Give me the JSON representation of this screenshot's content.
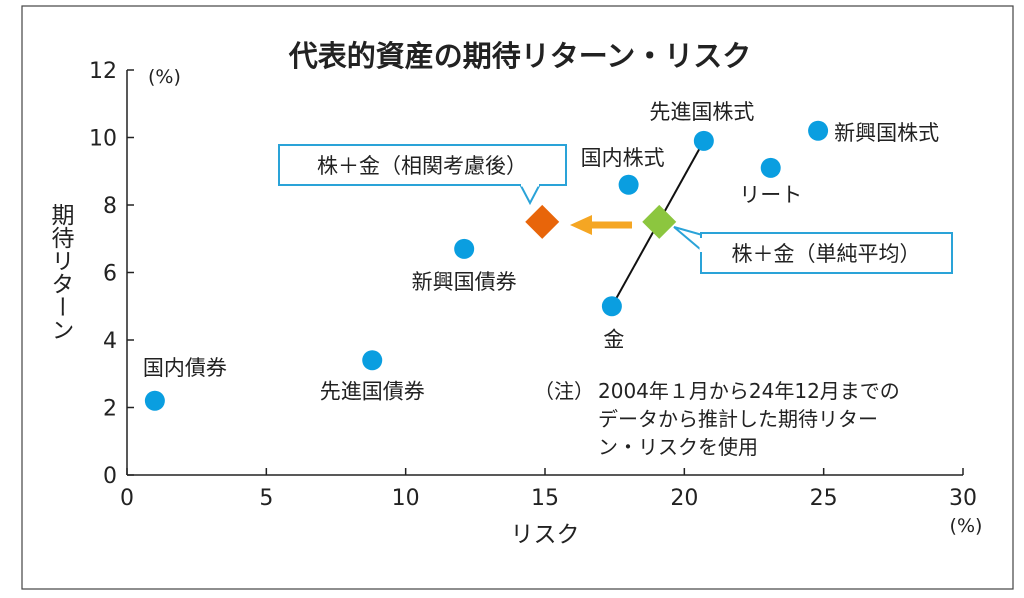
{
  "chart_data": {
    "type": "scatter",
    "title": "代表的資産の期待リターン・リスク",
    "xlabel": "リスク",
    "ylabel": "期待リターン",
    "x_unit": "(%)",
    "y_unit": "(%)",
    "xlim": [
      0,
      30
    ],
    "ylim": [
      0,
      12
    ],
    "x_ticks": [
      "0",
      "5",
      "10",
      "15",
      "20",
      "25",
      "30"
    ],
    "y_ticks": [
      "0",
      "2",
      "4",
      "6",
      "8",
      "10",
      "12"
    ],
    "grid": false,
    "points": [
      {
        "label": "国内債券",
        "x": 1.0,
        "y": 2.2
      },
      {
        "label": "先進国債券",
        "x": 8.8,
        "y": 3.4
      },
      {
        "label": "新興国債券",
        "x": 12.1,
        "y": 6.7
      },
      {
        "label": "国内株式",
        "x": 18.0,
        "y": 8.6
      },
      {
        "label": "先進国株式",
        "x": 20.7,
        "y": 9.9
      },
      {
        "label": "新興国株式",
        "x": 24.8,
        "y": 10.2
      },
      {
        "label": "リート",
        "x": 23.1,
        "y": 9.1
      },
      {
        "label": "金",
        "x": 17.4,
        "y": 5.0
      }
    ],
    "combined": [
      {
        "label": "株＋金（相関考慮後）",
        "x": 14.9,
        "y": 7.5,
        "color": "#e8650a"
      },
      {
        "label": "株＋金（単純平均）",
        "x": 19.1,
        "y": 7.5,
        "color": "#8cc63f"
      }
    ],
    "note": {
      "prefix": "（注）",
      "lines": [
        "2004年１月から24年12月までの",
        "データから推計した期待リター",
        "ン・リスクを使用"
      ]
    },
    "colors": {
      "point": "#0a9ee0",
      "title": "#e8101e",
      "callout_border": "#2aa3d8",
      "arrow": "#f5a623",
      "line": "#111111"
    }
  }
}
